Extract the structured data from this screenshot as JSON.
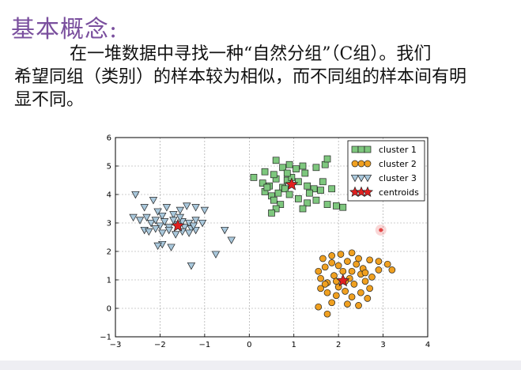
{
  "slide": {
    "title": "基本概念:",
    "para_line1": "在一堆数据中寻找一种“自然分组”（C组）。我们",
    "para_line2": "希望同组（类别）的样本较为相似，而不同组的样本间有明",
    "para_line3": "显不同。"
  },
  "chart_data": {
    "type": "scatter",
    "title": "",
    "xlabel": "",
    "ylabel": "",
    "xlim": [
      -3,
      4
    ],
    "ylim": [
      -1,
      6
    ],
    "xticks": [
      "−3",
      "−2",
      "−1",
      "0",
      "1",
      "2",
      "3",
      "4"
    ],
    "yticks": [
      "−1",
      "0",
      "1",
      "2",
      "3",
      "4",
      "5",
      "6"
    ],
    "grid": true,
    "legend_position": "top-right",
    "series": [
      {
        "name": "cluster 1",
        "marker": "square",
        "color": "#7ec77e",
        "points": [
          [
            0.1,
            4.6
          ],
          [
            0.35,
            4.8
          ],
          [
            0.6,
            5.2
          ],
          [
            0.75,
            4.95
          ],
          [
            0.9,
            5.05
          ],
          [
            1.05,
            4.9
          ],
          [
            1.25,
            4.75
          ],
          [
            1.5,
            4.95
          ],
          [
            1.7,
            5.05
          ],
          [
            1.75,
            5.25
          ],
          [
            0.3,
            4.4
          ],
          [
            0.45,
            4.3
          ],
          [
            0.6,
            4.55
          ],
          [
            0.75,
            4.25
          ],
          [
            0.85,
            4.5
          ],
          [
            0.95,
            4.6
          ],
          [
            1.1,
            4.45
          ],
          [
            1.3,
            4.3
          ],
          [
            1.45,
            4.2
          ],
          [
            1.6,
            4.15
          ],
          [
            0.35,
            4.1
          ],
          [
            0.5,
            3.95
          ],
          [
            0.65,
            4.05
          ],
          [
            0.8,
            4.2
          ],
          [
            0.55,
            3.8
          ],
          [
            0.7,
            3.65
          ],
          [
            0.9,
            4.0
          ],
          [
            1.1,
            3.85
          ],
          [
            1.3,
            3.7
          ],
          [
            1.5,
            3.8
          ],
          [
            1.75,
            3.65
          ],
          [
            1.95,
            3.6
          ],
          [
            2.1,
            3.55
          ],
          [
            0.6,
            3.5
          ],
          [
            0.5,
            3.35
          ],
          [
            1.2,
            3.5
          ],
          [
            0.4,
            4.25
          ],
          [
            0.85,
            4.75
          ],
          [
            1.2,
            5.0
          ],
          [
            1.65,
            4.45
          ],
          [
            0.55,
            4.7
          ],
          [
            1.35,
            4.05
          ],
          [
            1.85,
            4.2
          ]
        ]
      },
      {
        "name": "cluster 2",
        "marker": "circle",
        "color": "#f0a020",
        "points": [
          [
            1.6,
            1.05
          ],
          [
            1.75,
            0.9
          ],
          [
            1.9,
            1.15
          ],
          [
            2.0,
            0.75
          ],
          [
            2.1,
            1.3
          ],
          [
            2.25,
            1.05
          ],
          [
            2.35,
            0.85
          ],
          [
            2.5,
            1.2
          ],
          [
            2.6,
            0.95
          ],
          [
            2.75,
            1.1
          ],
          [
            1.7,
            1.45
          ],
          [
            1.85,
            1.6
          ],
          [
            2.0,
            1.5
          ],
          [
            2.2,
            1.65
          ],
          [
            2.4,
            1.55
          ],
          [
            2.55,
            1.4
          ],
          [
            2.7,
            1.7
          ],
          [
            1.55,
            1.3
          ],
          [
            2.45,
            1.75
          ],
          [
            2.05,
            1.9
          ],
          [
            1.75,
            0.55
          ],
          [
            1.95,
            0.45
          ],
          [
            2.15,
            0.6
          ],
          [
            2.3,
            0.4
          ],
          [
            2.5,
            0.55
          ],
          [
            2.65,
            0.35
          ],
          [
            1.85,
            0.2
          ],
          [
            2.2,
            0.15
          ],
          [
            2.45,
            0.1
          ],
          [
            1.75,
            -0.2
          ],
          [
            1.6,
            0.7
          ],
          [
            1.65,
            1.75
          ],
          [
            1.85,
            1.85
          ],
          [
            2.3,
            1.3
          ],
          [
            2.6,
            1.25
          ],
          [
            2.9,
            1.65
          ],
          [
            3.1,
            1.55
          ],
          [
            3.2,
            1.35
          ],
          [
            2.9,
            1.35
          ],
          [
            1.95,
            0.95
          ],
          [
            2.15,
            0.95
          ],
          [
            2.7,
            0.7
          ],
          [
            1.7,
            0.85
          ],
          [
            2.3,
            1.95
          ],
          [
            1.55,
            0.05
          ]
        ]
      },
      {
        "name": "cluster 3",
        "marker": "triangle-down",
        "color": "#a9c8dc",
        "points": [
          [
            -2.55,
            4.0
          ],
          [
            -2.35,
            3.55
          ],
          [
            -2.15,
            3.8
          ],
          [
            -2.05,
            3.4
          ],
          [
            -1.95,
            3.25
          ],
          [
            -1.85,
            3.55
          ],
          [
            -1.7,
            3.3
          ],
          [
            -1.55,
            3.45
          ],
          [
            -1.4,
            3.6
          ],
          [
            -1.2,
            3.55
          ],
          [
            -2.45,
            3.1
          ],
          [
            -2.3,
            3.2
          ],
          [
            -2.2,
            3.0
          ],
          [
            -2.1,
            3.1
          ],
          [
            -2.0,
            2.9
          ],
          [
            -1.9,
            3.05
          ],
          [
            -1.8,
            2.85
          ],
          [
            -1.7,
            3.1
          ],
          [
            -1.6,
            2.95
          ],
          [
            -1.5,
            3.05
          ],
          [
            -1.45,
            2.85
          ],
          [
            -1.35,
            3.0
          ],
          [
            -1.3,
            2.8
          ],
          [
            -1.2,
            3.1
          ],
          [
            -1.05,
            3.0
          ],
          [
            -2.35,
            2.75
          ],
          [
            -2.25,
            2.7
          ],
          [
            -2.1,
            2.8
          ],
          [
            -1.95,
            2.65
          ],
          [
            -1.8,
            2.75
          ],
          [
            -1.65,
            2.6
          ],
          [
            -1.5,
            2.7
          ],
          [
            -1.35,
            2.65
          ],
          [
            -1.2,
            2.75
          ],
          [
            -1.0,
            3.45
          ],
          [
            -0.55,
            2.75
          ],
          [
            -0.4,
            2.4
          ],
          [
            -1.95,
            2.25
          ],
          [
            -1.75,
            2.15
          ],
          [
            -1.3,
            1.5
          ],
          [
            -0.75,
            1.9
          ],
          [
            -2.05,
            2.2
          ],
          [
            -1.55,
            3.2
          ],
          [
            -1.25,
            2.9
          ],
          [
            -2.6,
            3.2
          ]
        ]
      },
      {
        "name": "centroids",
        "marker": "star",
        "color": "#e02020",
        "points": [
          [
            0.95,
            4.35
          ],
          [
            2.1,
            0.97
          ],
          [
            -1.6,
            2.9
          ]
        ]
      }
    ]
  },
  "colors": {
    "title": "#7a4f9e",
    "marker_edge": "#222222",
    "grid": "#9a9a9a",
    "pointer_dot": "#e02020"
  },
  "pointer": {
    "x": 2.95,
    "y": 2.75
  }
}
